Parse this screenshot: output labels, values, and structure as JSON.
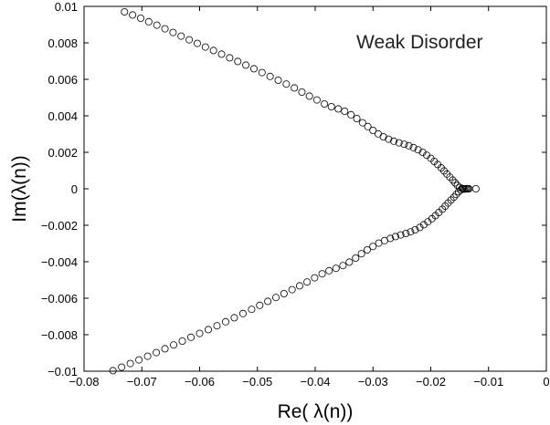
{
  "chart_data": {
    "type": "scatter",
    "title": "",
    "xlabel": "Re( λ(n))",
    "ylabel": "Im(λ(n))",
    "annotation": "Weak Disorder",
    "xlim": [
      -0.08,
      0
    ],
    "ylim": [
      -0.01,
      0.01
    ],
    "grid": false,
    "marker": "open-circle",
    "x_ticks": [
      -0.08,
      -0.07,
      -0.06,
      -0.05,
      -0.04,
      -0.03,
      -0.02,
      -0.01,
      0
    ],
    "x_tick_labels": [
      "−0.08",
      "−0.07",
      "−0.06",
      "−0.05",
      "−0.04",
      "−0.03",
      "−0.02",
      "−0.01",
      "0"
    ],
    "y_ticks": [
      -0.01,
      -0.008,
      -0.006,
      -0.004,
      -0.002,
      0,
      0.002,
      0.004,
      0.006,
      0.008,
      0.01
    ],
    "y_tick_labels": [
      "−0.01",
      "−0.008",
      "−0.006",
      "−0.004",
      "−0.002",
      "0",
      "0.002",
      "0.004",
      "0.006",
      "0.008",
      "0.01"
    ],
    "branch_upper": [
      [
        -0.073,
        0.0097
      ],
      [
        -0.0716,
        0.00953
      ],
      [
        -0.0702,
        0.00935
      ],
      [
        -0.0688,
        0.00916
      ],
      [
        -0.0674,
        0.00897
      ],
      [
        -0.066,
        0.00877
      ],
      [
        -0.0646,
        0.00857
      ],
      [
        -0.0632,
        0.00837
      ],
      [
        -0.0618,
        0.00817
      ],
      [
        -0.0604,
        0.00797
      ],
      [
        -0.059,
        0.00777
      ],
      [
        -0.0576,
        0.00758
      ],
      [
        -0.0562,
        0.00738
      ],
      [
        -0.0548,
        0.00718
      ],
      [
        -0.0534,
        0.00698
      ],
      [
        -0.052,
        0.00678
      ],
      [
        -0.0506,
        0.00658
      ],
      [
        -0.0492,
        0.00637
      ],
      [
        -0.0478,
        0.00616
      ],
      [
        -0.0464,
        0.00595
      ],
      [
        -0.045,
        0.00574
      ],
      [
        -0.0436,
        0.00553
      ],
      [
        -0.0423,
        0.0053
      ],
      [
        -0.041,
        0.00508
      ],
      [
        -0.0397,
        0.00487
      ],
      [
        -0.0384,
        0.00465
      ],
      [
        -0.0372,
        0.0045
      ],
      [
        -0.036,
        0.00438
      ],
      [
        -0.0349,
        0.00425
      ],
      [
        -0.0338,
        0.00406
      ],
      [
        -0.0328,
        0.00385
      ],
      [
        -0.0318,
        0.00362
      ],
      [
        -0.0309,
        0.00341
      ],
      [
        -0.03,
        0.0032
      ],
      [
        -0.0291,
        0.00301
      ],
      [
        -0.0282,
        0.00285
      ],
      [
        -0.0273,
        0.00272
      ],
      [
        -0.0264,
        0.00261
      ],
      [
        -0.0255,
        0.00252
      ],
      [
        -0.0246,
        0.00244
      ],
      [
        -0.0238,
        0.00236
      ],
      [
        -0.023,
        0.00226
      ],
      [
        -0.0222,
        0.00214
      ],
      [
        -0.0214,
        0.002
      ],
      [
        -0.0207,
        0.00184
      ],
      [
        -0.02,
        0.00167
      ],
      [
        -0.0194,
        0.0015
      ],
      [
        -0.0188,
        0.00133
      ],
      [
        -0.0182,
        0.00115
      ],
      [
        -0.0177,
        0.00098
      ],
      [
        -0.0172,
        0.00081
      ],
      [
        -0.0167,
        0.00064
      ],
      [
        -0.0162,
        0.00048
      ],
      [
        -0.0158,
        0.00033
      ],
      [
        -0.0154,
        0.00019
      ],
      [
        -0.015,
        7e-05
      ]
    ],
    "branch_lower": [
      [
        -0.075,
        -0.00997
      ],
      [
        -0.0735,
        -0.00978
      ],
      [
        -0.072,
        -0.00958
      ],
      [
        -0.0705,
        -0.00938
      ],
      [
        -0.069,
        -0.00918
      ],
      [
        -0.0675,
        -0.00898
      ],
      [
        -0.066,
        -0.00877
      ],
      [
        -0.0645,
        -0.00856
      ],
      [
        -0.063,
        -0.00835
      ],
      [
        -0.0615,
        -0.00814
      ],
      [
        -0.06,
        -0.00793
      ],
      [
        -0.0585,
        -0.00772
      ],
      [
        -0.057,
        -0.00751
      ],
      [
        -0.0555,
        -0.00729
      ],
      [
        -0.054,
        -0.00707
      ],
      [
        -0.0525,
        -0.00684
      ],
      [
        -0.051,
        -0.00661
      ],
      [
        -0.0496,
        -0.00639
      ],
      [
        -0.0482,
        -0.00617
      ],
      [
        -0.0468,
        -0.00596
      ],
      [
        -0.0454,
        -0.00575
      ],
      [
        -0.044,
        -0.00553
      ],
      [
        -0.0427,
        -0.00532
      ],
      [
        -0.0414,
        -0.00511
      ],
      [
        -0.0401,
        -0.00488
      ],
      [
        -0.0388,
        -0.00466
      ],
      [
        -0.0376,
        -0.00449
      ],
      [
        -0.0364,
        -0.00436
      ],
      [
        -0.0352,
        -0.00421
      ],
      [
        -0.0341,
        -0.00402
      ],
      [
        -0.033,
        -0.0038
      ],
      [
        -0.032,
        -0.00356
      ],
      [
        -0.031,
        -0.00335
      ],
      [
        -0.03,
        -0.00316
      ],
      [
        -0.029,
        -0.00298
      ],
      [
        -0.028,
        -0.00284
      ],
      [
        -0.027,
        -0.00272
      ],
      [
        -0.0261,
        -0.00262
      ],
      [
        -0.0252,
        -0.00253
      ],
      [
        -0.0243,
        -0.00245
      ],
      [
        -0.0235,
        -0.00236
      ],
      [
        -0.0227,
        -0.00225
      ],
      [
        -0.0219,
        -0.00212
      ],
      [
        -0.0212,
        -0.00197
      ],
      [
        -0.0205,
        -0.00181
      ],
      [
        -0.0198,
        -0.00164
      ],
      [
        -0.0192,
        -0.00147
      ],
      [
        -0.0186,
        -0.0013
      ],
      [
        -0.018,
        -0.00112
      ],
      [
        -0.0175,
        -0.00095
      ],
      [
        -0.017,
        -0.00078
      ],
      [
        -0.0165,
        -0.00062
      ],
      [
        -0.016,
        -0.00046
      ],
      [
        -0.0156,
        -0.00031
      ],
      [
        -0.0152,
        -0.00017
      ],
      [
        -0.0148,
        -6e-05
      ]
    ],
    "cluster_near_zero": [
      [
        -0.0146,
        2e-05
      ],
      [
        -0.0144,
        0.0
      ],
      [
        -0.0142,
        -2e-05
      ],
      [
        -0.014,
        0.0
      ],
      [
        -0.0138,
        1e-05
      ],
      [
        -0.0136,
        0.0
      ],
      [
        -0.0134,
        0.0
      ],
      [
        -0.0122,
        0.0
      ]
    ]
  }
}
